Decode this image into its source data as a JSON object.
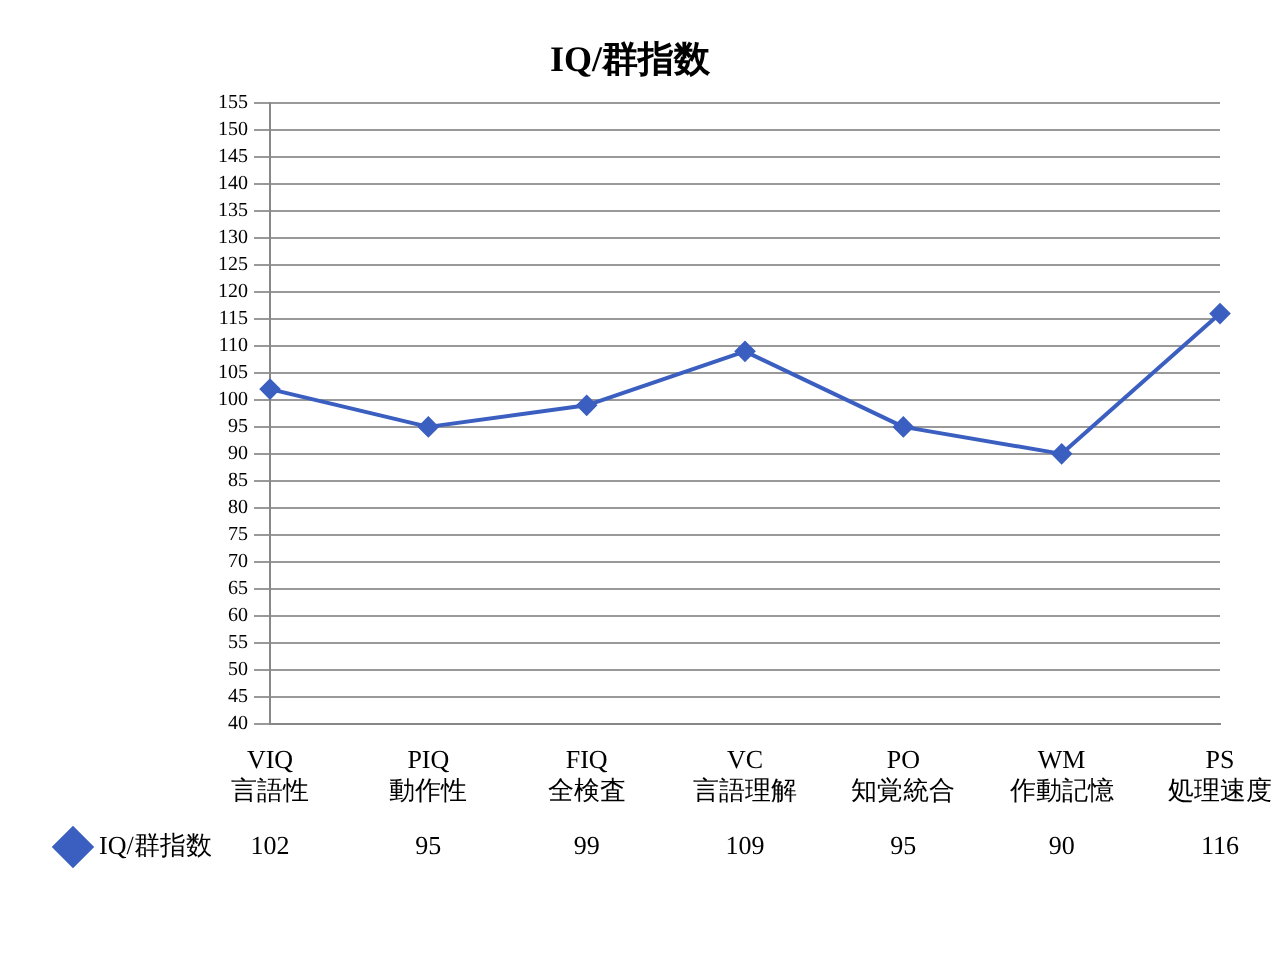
{
  "chart_data": {
    "type": "line",
    "title": "IQ/群指数",
    "categories": [
      "VIQ\n言語性",
      "PIQ\n動作性",
      "FIQ\n全検査",
      "VC\n言語理解",
      "PO\n知覚統合",
      "WM\n作動記憶",
      "PS\n処理速度"
    ],
    "series": [
      {
        "name": "IQ/群指数",
        "color": "#3b5fc0",
        "values": [
          102,
          95,
          99,
          109,
          95,
          90,
          116
        ]
      }
    ],
    "ylim": [
      40,
      155
    ],
    "yticks": [
      40,
      45,
      50,
      55,
      60,
      65,
      70,
      75,
      80,
      85,
      90,
      95,
      100,
      105,
      110,
      115,
      120,
      125,
      130,
      135,
      140,
      145,
      150,
      155
    ],
    "grid": "y",
    "marker": "diamond",
    "line_style": "solid",
    "legend": "bottom",
    "data_labels": true
  }
}
